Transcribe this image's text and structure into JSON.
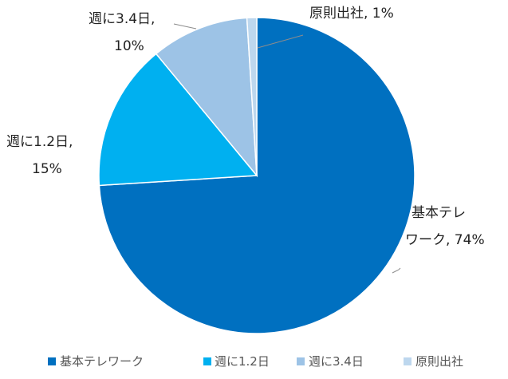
{
  "chart_data": {
    "type": "pie",
    "title": "",
    "slices": [
      {
        "name": "基本テレワーク",
        "value": 74,
        "label_line1": "基本テレ",
        "label_line2": "ワーク, 74%",
        "color": "#0070c0"
      },
      {
        "name": "週に1.2日",
        "value": 15,
        "label_line1": "週に1.2日,",
        "label_line2": "15%",
        "color": "#00b0f0"
      },
      {
        "name": "週に3.4日",
        "value": 10,
        "label_line1": "週に3.4日,",
        "label_line2": "10%",
        "color": "#9dc3e6"
      },
      {
        "name": "原則出社",
        "value": 1,
        "label_line1": "原則出社, 1%",
        "label_line2": "",
        "color": "#bdd7ee"
      }
    ],
    "start_angle": "12 o'clock, clockwise",
    "legend_position": "bottom"
  }
}
